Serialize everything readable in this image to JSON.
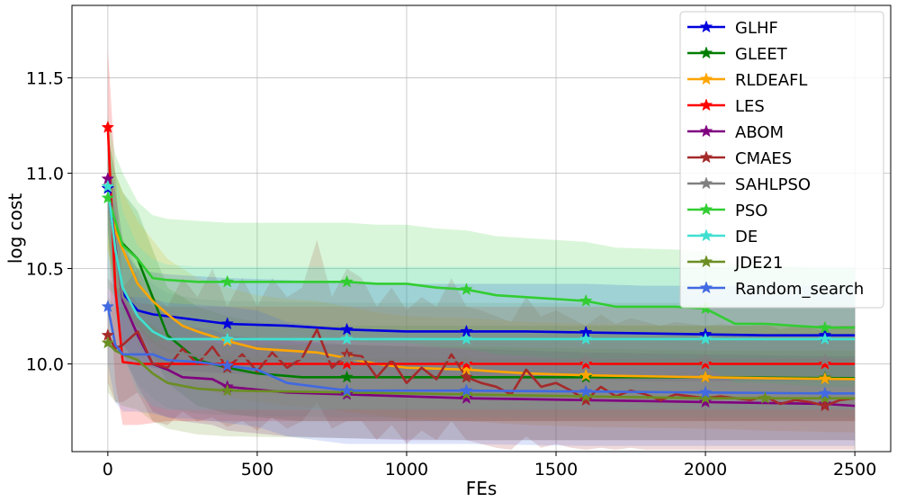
{
  "chart_data": {
    "type": "line",
    "xlabel": "FEs",
    "ylabel": "log cost",
    "xlim": [
      -120,
      2620
    ],
    "ylim": [
      9.54,
      11.88
    ],
    "xticks": [
      0,
      500,
      1000,
      1500,
      2000,
      2500
    ],
    "yticks": [
      10.0,
      10.5,
      11.0,
      11.5
    ],
    "xtick_labels": [
      "0",
      "500",
      "1000",
      "1500",
      "2000",
      "2500"
    ],
    "ytick_labels": [
      "10.0",
      "10.5",
      "11.0",
      "11.5"
    ],
    "grid": true,
    "legend_position": "top-right",
    "series": [
      {
        "name": "GLHF",
        "color": "#0000dd",
        "x": [
          0,
          25,
          50,
          100,
          150,
          200,
          300,
          400,
          600,
          800,
          1000,
          1200,
          1400,
          1600,
          1800,
          2000,
          2200,
          2500
        ],
        "y": [
          10.92,
          10.6,
          10.37,
          10.28,
          10.26,
          10.25,
          10.23,
          10.21,
          10.2,
          10.18,
          10.17,
          10.17,
          10.17,
          10.165,
          10.16,
          10.155,
          10.15,
          10.15
        ],
        "markers_x": [
          0,
          400,
          800,
          1200,
          1600,
          2000,
          2400
        ],
        "band_upper": [
          11.0,
          10.8,
          10.6,
          10.5,
          10.48,
          10.47,
          10.46,
          10.45,
          10.44,
          10.43,
          10.42,
          10.42,
          10.42,
          10.42,
          10.41,
          10.41,
          10.41,
          10.41
        ],
        "band_lower": [
          10.7,
          10.3,
          10.1,
          10.0,
          9.98,
          9.97,
          9.96,
          9.95,
          9.94,
          9.93,
          9.92,
          9.92,
          9.92,
          9.92,
          9.91,
          9.91,
          9.91,
          9.91
        ]
      },
      {
        "name": "GLEET",
        "color": "#007d00",
        "x": [
          0,
          25,
          50,
          100,
          150,
          200,
          300,
          400,
          500,
          650,
          800,
          1000,
          1200,
          1600,
          2000,
          2500
        ],
        "y": [
          10.93,
          10.7,
          10.63,
          10.55,
          10.35,
          10.15,
          10.02,
          9.98,
          9.95,
          9.93,
          9.93,
          9.93,
          9.93,
          9.93,
          9.93,
          9.925
        ],
        "markers_x": [
          0,
          400,
          800,
          1200,
          1600,
          2000,
          2400
        ],
        "band_upper": [
          11.2,
          11.0,
          10.9,
          10.8,
          10.6,
          10.4,
          10.3,
          10.25,
          10.22,
          10.2,
          10.2,
          10.2,
          10.2,
          10.2,
          10.2,
          10.2
        ],
        "band_lower": [
          10.6,
          10.4,
          10.3,
          10.2,
          10.05,
          9.9,
          9.78,
          9.74,
          9.72,
          9.7,
          9.7,
          9.7,
          9.7,
          9.7,
          9.7,
          9.7
        ]
      },
      {
        "name": "RLDEAFL",
        "color": "#ffa500",
        "x": [
          0,
          25,
          50,
          100,
          150,
          200,
          250,
          300,
          400,
          500,
          600,
          700,
          800,
          900,
          1000,
          1200,
          1400,
          1600,
          2000,
          2200,
          2500
        ],
        "y": [
          10.93,
          10.7,
          10.6,
          10.42,
          10.33,
          10.26,
          10.2,
          10.17,
          10.12,
          10.08,
          10.07,
          10.06,
          10.03,
          10.0,
          9.98,
          9.97,
          9.95,
          9.94,
          9.93,
          9.925,
          9.92
        ],
        "markers_x": [
          0,
          400,
          800,
          1200,
          1600,
          2000,
          2400
        ],
        "band_upper": [
          11.2,
          11.0,
          10.9,
          10.75,
          10.65,
          10.55,
          10.5,
          10.45,
          10.4,
          10.36,
          10.34,
          10.33,
          10.3,
          10.27,
          10.25,
          10.24,
          10.22,
          10.21,
          10.2,
          10.2,
          10.2
        ],
        "band_lower": [
          10.6,
          10.4,
          10.3,
          10.1,
          10.0,
          9.95,
          9.9,
          9.87,
          9.83,
          9.8,
          9.78,
          9.77,
          9.75,
          9.73,
          9.71,
          9.7,
          9.68,
          9.67,
          9.66,
          9.65,
          9.64
        ]
      },
      {
        "name": "LES",
        "color": "#ff0000",
        "x": [
          0,
          10,
          25,
          50,
          100,
          200,
          400,
          800,
          1200,
          1600,
          2000,
          2500
        ],
        "y": [
          11.24,
          10.9,
          10.4,
          10.01,
          10.0,
          10.0,
          10.0,
          10.0,
          10.0,
          10.0,
          10.0,
          10.0
        ],
        "markers_x": [
          0,
          400,
          800,
          1200,
          1600,
          2000,
          2400
        ],
        "band_upper": [
          11.65,
          11.4,
          11.0,
          10.4,
          10.32,
          10.3,
          10.3,
          10.3,
          10.3,
          10.3,
          10.3,
          10.3
        ],
        "band_lower": [
          10.8,
          10.3,
          9.9,
          9.68,
          9.68,
          9.7,
          9.7,
          9.7,
          9.7,
          9.7,
          9.7,
          9.7
        ]
      },
      {
        "name": "ABOM",
        "color": "#800080",
        "x": [
          0,
          25,
          50,
          100,
          150,
          200,
          250,
          350,
          400,
          600,
          800,
          1000,
          1200,
          1400,
          1600,
          2000,
          2400,
          2500
        ],
        "y": [
          10.97,
          10.62,
          10.33,
          10.15,
          10.0,
          9.97,
          9.93,
          9.92,
          9.88,
          9.85,
          9.84,
          9.83,
          9.82,
          9.815,
          9.81,
          9.8,
          9.79,
          9.78
        ],
        "markers_x": [
          0,
          400,
          800,
          1200,
          1600,
          2000,
          2400
        ],
        "band_upper": [
          11.1,
          10.9,
          10.65,
          10.45,
          10.3,
          10.25,
          10.2,
          10.18,
          10.15,
          10.12,
          10.1,
          10.09,
          10.08,
          10.07,
          10.06,
          10.05,
          10.04,
          10.04
        ],
        "band_lower": [
          10.8,
          10.35,
          10.05,
          9.88,
          9.75,
          9.72,
          9.7,
          9.68,
          9.65,
          9.62,
          9.61,
          9.6,
          9.6,
          9.6,
          9.6,
          9.6,
          9.6,
          9.6
        ]
      },
      {
        "name": "CMAES",
        "color": "#a52a2a",
        "x": [
          0,
          25,
          50,
          100,
          150,
          200,
          250,
          300,
          350,
          400,
          450,
          500,
          550,
          600,
          650,
          700,
          750,
          800,
          850,
          900,
          950,
          1000,
          1050,
          1100,
          1150,
          1200,
          1250,
          1300,
          1350,
          1400,
          1450,
          1500,
          1550,
          1600,
          1650,
          1700,
          1750,
          1800,
          1850,
          1900,
          1950,
          2000,
          2050,
          2100,
          2150,
          2200,
          2250,
          2300,
          2350,
          2400,
          2450,
          2500
        ],
        "y": [
          10.15,
          10.08,
          10.1,
          10.17,
          10.0,
          9.98,
          10.08,
          10.0,
          10.09,
          9.98,
          10.05,
          9.96,
          10.06,
          9.98,
          10.03,
          10.18,
          9.98,
          10.05,
          10.04,
          9.93,
          10.02,
          9.9,
          9.98,
          9.92,
          10.05,
          9.93,
          9.9,
          9.88,
          9.84,
          9.97,
          9.88,
          9.9,
          9.86,
          9.81,
          9.88,
          9.83,
          9.86,
          9.84,
          9.81,
          9.84,
          9.83,
          9.82,
          9.83,
          9.82,
          9.81,
          9.83,
          9.79,
          9.81,
          9.8,
          9.78,
          9.81,
          9.82
        ],
        "markers_x": [
          0,
          400,
          800,
          1200,
          1600,
          2000,
          2400
        ],
        "band_upper": [
          10.45,
          10.4,
          10.4,
          10.5,
          10.35,
          10.3,
          10.45,
          10.35,
          10.5,
          10.3,
          10.45,
          10.3,
          10.45,
          10.35,
          10.4,
          10.65,
          10.35,
          10.5,
          10.45,
          10.3,
          10.4,
          10.28,
          10.35,
          10.3,
          10.45,
          10.3,
          10.28,
          10.25,
          10.22,
          10.35,
          10.25,
          10.28,
          10.24,
          10.2,
          10.26,
          10.21,
          10.24,
          10.22,
          10.2,
          10.22,
          10.21,
          10.2,
          10.21,
          10.2,
          10.2,
          10.21,
          10.18,
          10.2,
          10.19,
          10.17,
          10.2,
          10.2
        ],
        "band_lower": [
          9.9,
          9.8,
          9.8,
          9.85,
          9.7,
          9.68,
          9.75,
          9.7,
          9.72,
          9.67,
          9.7,
          9.65,
          9.72,
          9.66,
          9.7,
          9.8,
          9.66,
          9.7,
          9.7,
          9.6,
          9.68,
          9.58,
          9.65,
          9.6,
          9.7,
          9.6,
          9.58,
          9.56,
          9.55,
          9.62,
          9.56,
          9.58,
          9.56,
          9.55,
          9.56,
          9.55,
          9.56,
          9.55,
          9.55,
          9.55,
          9.55,
          9.55,
          9.55,
          9.55,
          9.55,
          9.55,
          9.55,
          9.55,
          9.55,
          9.55,
          9.55,
          9.55
        ]
      },
      {
        "name": "SAHLPSO",
        "color": "#808080",
        "x": [
          0,
          25,
          50,
          100,
          150,
          200,
          300,
          400,
          800,
          1200,
          1600,
          2000,
          2500
        ],
        "y": [
          10.93,
          10.6,
          10.35,
          10.2,
          10.12,
          10.07,
          10.04,
          10.03,
          10.025,
          10.02,
          10.02,
          10.02,
          10.02
        ],
        "markers_x": [
          0,
          400,
          800,
          1200,
          1600,
          2000,
          2400
        ],
        "band_upper": [
          11.15,
          10.9,
          10.65,
          10.5,
          10.42,
          10.37,
          10.34,
          10.33,
          10.32,
          10.32,
          10.32,
          10.32,
          10.32
        ],
        "band_lower": [
          10.7,
          10.3,
          10.05,
          9.9,
          9.82,
          9.77,
          9.74,
          9.73,
          9.72,
          9.72,
          9.72,
          9.72,
          9.72
        ]
      },
      {
        "name": "PSO",
        "color": "#32cd32",
        "x": [
          0,
          25,
          50,
          100,
          150,
          200,
          300,
          400,
          600,
          800,
          900,
          1000,
          1100,
          1200,
          1300,
          1500,
          1600,
          1700,
          1900,
          2000,
          2100,
          2200,
          2400,
          2500
        ],
        "y": [
          10.87,
          10.75,
          10.62,
          10.55,
          10.45,
          10.44,
          10.43,
          10.43,
          10.43,
          10.43,
          10.42,
          10.42,
          10.4,
          10.39,
          10.36,
          10.34,
          10.33,
          10.3,
          10.3,
          10.29,
          10.21,
          10.21,
          10.19,
          10.19
        ],
        "markers_x": [
          0,
          400,
          800,
          1200,
          1600,
          2000,
          2400
        ],
        "band_upper": [
          11.3,
          11.1,
          11.0,
          10.85,
          10.78,
          10.76,
          10.75,
          10.74,
          10.74,
          10.74,
          10.73,
          10.73,
          10.71,
          10.7,
          10.67,
          10.65,
          10.64,
          10.61,
          10.6,
          10.59,
          10.52,
          10.52,
          10.5,
          10.5
        ],
        "band_lower": [
          10.4,
          10.35,
          10.25,
          10.2,
          10.12,
          10.12,
          10.12,
          10.12,
          10.12,
          10.12,
          10.11,
          10.11,
          10.09,
          10.08,
          10.05,
          10.03,
          10.02,
          9.99,
          9.99,
          9.98,
          9.9,
          9.9,
          9.88,
          9.88
        ]
      },
      {
        "name": "DE",
        "color": "#40e0d0",
        "x": [
          0,
          25,
          50,
          100,
          150,
          200,
          300,
          400,
          800,
          1200,
          1600,
          2000,
          2500
        ],
        "y": [
          10.93,
          10.6,
          10.4,
          10.25,
          10.17,
          10.13,
          10.13,
          10.13,
          10.13,
          10.13,
          10.13,
          10.13,
          10.13
        ],
        "markers_x": [
          0,
          400,
          800,
          1200,
          1600,
          2000,
          2400
        ],
        "band_upper": [
          11.2,
          11.0,
          10.8,
          10.62,
          10.55,
          10.52,
          10.51,
          10.51,
          10.51,
          10.51,
          10.51,
          10.51,
          10.51
        ],
        "band_lower": [
          10.7,
          10.25,
          10.05,
          9.85,
          9.78,
          9.76,
          9.76,
          9.76,
          9.76,
          9.76,
          9.76,
          9.76,
          9.76
        ]
      },
      {
        "name": "JDE21",
        "color": "#6b8e23",
        "x": [
          0,
          25,
          50,
          100,
          150,
          200,
          300,
          400,
          800,
          1200,
          1600,
          2000,
          2200,
          2500
        ],
        "y": [
          10.11,
          10.07,
          10.05,
          10.02,
          9.95,
          9.9,
          9.87,
          9.86,
          9.85,
          9.84,
          9.83,
          9.82,
          9.82,
          9.82
        ],
        "markers_x": [
          0,
          400,
          800,
          1200,
          1600,
          2000,
          2200,
          2400
        ],
        "band_upper": [
          10.35,
          10.3,
          10.3,
          10.25,
          10.2,
          10.15,
          10.12,
          10.1,
          10.1,
          10.09,
          10.08,
          10.07,
          10.07,
          10.07
        ],
        "band_lower": [
          9.85,
          9.8,
          9.78,
          9.76,
          9.7,
          9.66,
          9.63,
          9.62,
          9.61,
          9.6,
          9.6,
          9.6,
          9.6,
          9.6
        ]
      },
      {
        "name": "Random_search",
        "color": "#4169e1",
        "x": [
          0,
          25,
          50,
          100,
          150,
          200,
          300,
          400,
          500,
          600,
          800,
          1200,
          1600,
          2000,
          2400,
          2500
        ],
        "y": [
          10.3,
          10.1,
          10.05,
          10.05,
          10.05,
          10.02,
          10.01,
          9.99,
          9.97,
          9.9,
          9.86,
          9.86,
          9.855,
          9.85,
          9.845,
          9.845
        ],
        "markers_x": [
          0,
          400,
          800,
          1200,
          1600,
          2000,
          2400
        ],
        "band_upper": [
          10.6,
          10.4,
          10.35,
          10.35,
          10.34,
          10.32,
          10.31,
          10.3,
          10.28,
          10.22,
          10.18,
          10.17,
          10.16,
          10.16,
          10.15,
          10.15
        ],
        "band_lower": [
          10.0,
          9.8,
          9.75,
          9.75,
          9.74,
          9.72,
          9.71,
          9.69,
          9.67,
          9.62,
          9.58,
          9.58,
          9.57,
          9.57,
          9.57,
          9.57
        ]
      }
    ]
  }
}
